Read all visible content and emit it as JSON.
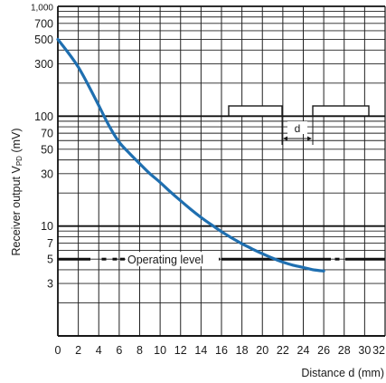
{
  "chart_data": {
    "type": "line",
    "xlabel": "Distance d (mm)",
    "ylabel": "Receiver output V",
    "ylabel_subscript": "PD",
    "ylabel_unit": " (mV)",
    "xlim": [
      0,
      32
    ],
    "ylim": [
      1,
      1000
    ],
    "y_scale": "log",
    "grid": true,
    "x_ticks": [
      {
        "v": 0,
        "label": "0"
      },
      {
        "v": 2,
        "label": "2"
      },
      {
        "v": 4,
        "label": "4"
      },
      {
        "v": 6,
        "label": "6"
      },
      {
        "v": 8,
        "label": "8"
      },
      {
        "v": 10,
        "label": "10"
      },
      {
        "v": 12,
        "label": "12"
      },
      {
        "v": 14,
        "label": "14"
      },
      {
        "v": 16,
        "label": "16"
      },
      {
        "v": 18,
        "label": "18"
      },
      {
        "v": 20,
        "label": "20"
      },
      {
        "v": 22,
        "label": "22"
      },
      {
        "v": 24,
        "label": "24"
      },
      {
        "v": 26,
        "label": "26"
      },
      {
        "v": 28,
        "label": "28"
      },
      {
        "v": 30,
        "label": "30"
      },
      {
        "v": 32,
        "label": "32"
      }
    ],
    "y_ticks": [
      {
        "v": 1000,
        "label": "1,000"
      },
      {
        "v": 700,
        "label": "700"
      },
      {
        "v": 500,
        "label": "500"
      },
      {
        "v": 300,
        "label": "300"
      },
      {
        "v": 100,
        "label": "100"
      },
      {
        "v": 70,
        "label": "70"
      },
      {
        "v": 50,
        "label": "50"
      },
      {
        "v": 30,
        "label": "30"
      },
      {
        "v": 10,
        "label": "10"
      },
      {
        "v": 7,
        "label": "7"
      },
      {
        "v": 5,
        "label": "5"
      },
      {
        "v": 3,
        "label": "3"
      }
    ],
    "series": [
      {
        "color": "#1f6fb0",
        "x": [
          0,
          1,
          2,
          3,
          4,
          5,
          6,
          7,
          8,
          9,
          10,
          11,
          12,
          13,
          14,
          15,
          16,
          17,
          18,
          19,
          20,
          21,
          22,
          23,
          24,
          25,
          26
        ],
        "y": [
          500,
          380,
          280,
          190,
          125,
          82,
          58,
          46,
          37,
          30,
          25,
          20.5,
          17,
          14.2,
          12,
          10.3,
          8.9,
          7.8,
          6.9,
          6.2,
          5.6,
          5.1,
          4.7,
          4.4,
          4.2,
          4.0,
          3.9
        ]
      }
    ],
    "annotations": [
      {
        "text": "Operating level",
        "y": 5
      },
      {
        "text": "d"
      }
    ]
  }
}
